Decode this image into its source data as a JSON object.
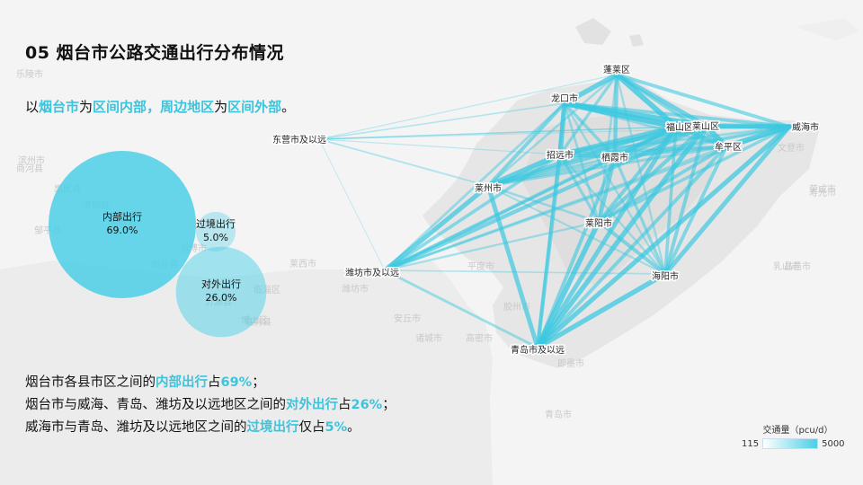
{
  "header": {
    "title": "05 烟台市公路交通出行分布情况"
  },
  "subtitle": {
    "parts": [
      "以",
      "烟台市",
      "为",
      "区间内部",
      "，",
      "周边地区",
      "为",
      "区间外部",
      "。"
    ]
  },
  "notes": [
    {
      "parts": [
        "烟台市各县市区之间的",
        "内部出行",
        "占",
        "69%",
        "；"
      ]
    },
    {
      "parts": [
        "烟台市与威海、青岛、潍坊及以远地区之间的",
        "对外出行",
        "占",
        "26%",
        "；"
      ]
    },
    {
      "parts": [
        "威海市与青岛、潍坊及以远地区之间的",
        "过境出行",
        "仅占",
        "5%",
        "。"
      ]
    }
  ],
  "legend": {
    "title": "交通量（pcu/d）",
    "min_label": "115",
    "max_label": "5000"
  },
  "colors": {
    "accent": "#3cc4dc",
    "bubble_fill": "#4ccfe6",
    "line": "#3cc8e0"
  },
  "map_labels": [
    "乐陵市",
    "滨州市",
    "商河县",
    "惠民县",
    "济阳县",
    "高青县",
    "桓台县",
    "邹平县",
    "淄博市",
    "临淄区",
    "博山区",
    "沂源县",
    "临朐县",
    "潍坊市",
    "安丘市",
    "诸城市",
    "高密市",
    "胶州市",
    "即墨市",
    "青岛市",
    "平度市",
    "莱西市",
    "昌邑市",
    "寿光市",
    "乳山市",
    "荣成市",
    "文登市",
    "威海市"
  ],
  "chart_data": {
    "type": "bubble",
    "bubbles": [
      {
        "label": "内部出行",
        "value_label": "69.0%",
        "value": 69.0
      },
      {
        "label": "过境出行",
        "value_label": "5.0%",
        "value": 5.0
      },
      {
        "label": "对外出行",
        "value_label": "26.0%",
        "value": 26.0
      }
    ],
    "flow_map": {
      "nodes": [
        "蓬莱区",
        "龙口市",
        "福山区",
        "莱山区",
        "威海市",
        "牟平区",
        "招远市",
        "栖霞市",
        "东营市及以远",
        "莱州市",
        "莱阳市",
        "潍坊市及以远",
        "海阳市",
        "青岛市及以远"
      ],
      "flows": [
        {
          "from": "龙口市",
          "to": "蓬莱区",
          "volume": 4200
        },
        {
          "from": "蓬莱区",
          "to": "福山区",
          "volume": 4600
        },
        {
          "from": "蓬莱区",
          "to": "莱山区",
          "volume": 3800
        },
        {
          "from": "蓬莱区",
          "to": "威海市",
          "volume": 2900
        },
        {
          "from": "蓬莱区",
          "to": "牟平区",
          "volume": 2600
        },
        {
          "from": "蓬莱区",
          "to": "招远市",
          "volume": 2400
        },
        {
          "from": "蓬莱区",
          "to": "栖霞市",
          "volume": 3300
        },
        {
          "from": "蓬莱区",
          "to": "莱州市",
          "volume": 1700
        },
        {
          "from": "蓬莱区",
          "to": "莱阳市",
          "volume": 1600
        },
        {
          "from": "蓬莱区",
          "to": "海阳市",
          "volume": 1500
        },
        {
          "from": "蓬莱区",
          "to": "东营市及以远",
          "volume": 500
        },
        {
          "from": "龙口市",
          "to": "福山区",
          "volume": 5000
        },
        {
          "from": "龙口市",
          "to": "莱山区",
          "volume": 4500
        },
        {
          "from": "龙口市",
          "to": "威海市",
          "volume": 2800
        },
        {
          "from": "龙口市",
          "to": "牟平区",
          "volume": 2000
        },
        {
          "from": "龙口市",
          "to": "招远市",
          "volume": 4200
        },
        {
          "from": "龙口市",
          "to": "栖霞市",
          "volume": 2500
        },
        {
          "from": "龙口市",
          "to": "莱州市",
          "volume": 3000
        },
        {
          "from": "龙口市",
          "to": "莱阳市",
          "volume": 1800
        },
        {
          "from": "龙口市",
          "to": "海阳市",
          "volume": 1500
        },
        {
          "from": "龙口市",
          "to": "东营市及以远",
          "volume": 900
        },
        {
          "from": "龙口市",
          "to": "潍坊市及以远",
          "volume": 1900
        },
        {
          "from": "龙口市",
          "to": "青岛市及以远",
          "volume": 2200
        },
        {
          "from": "福山区",
          "to": "莱山区",
          "volume": 5000
        },
        {
          "from": "福山区",
          "to": "威海市",
          "volume": 3500
        },
        {
          "from": "福山区",
          "to": "牟平区",
          "volume": 3600
        },
        {
          "from": "福山区",
          "to": "招远市",
          "volume": 3800
        },
        {
          "from": "福山区",
          "to": "栖霞市",
          "volume": 3500
        },
        {
          "from": "福山区",
          "to": "莱州市",
          "volume": 3400
        },
        {
          "from": "福山区",
          "to": "莱阳市",
          "volume": 3000
        },
        {
          "from": "福山区",
          "to": "海阳市",
          "volume": 2600
        },
        {
          "from": "福山区",
          "to": "东营市及以远",
          "volume": 700
        },
        {
          "from": "福山区",
          "to": "潍坊市及以远",
          "volume": 3000
        },
        {
          "from": "福山区",
          "to": "青岛市及以远",
          "volume": 3800
        },
        {
          "from": "莱山区",
          "to": "威海市",
          "volume": 4200
        },
        {
          "from": "莱山区",
          "to": "牟平区",
          "volume": 4300
        },
        {
          "from": "莱山区",
          "to": "招远市",
          "volume": 3600
        },
        {
          "from": "莱山区",
          "to": "栖霞市",
          "volume": 3400
        },
        {
          "from": "莱山区",
          "to": "莱州市",
          "volume": 3200
        },
        {
          "from": "莱山区",
          "to": "莱阳市",
          "volume": 3200
        },
        {
          "from": "莱山区",
          "to": "海阳市",
          "volume": 3000
        },
        {
          "from": "莱山区",
          "to": "东营市及以远",
          "volume": 600
        },
        {
          "from": "莱山区",
          "to": "潍坊市及以远",
          "volume": 3300
        },
        {
          "from": "莱山区",
          "to": "青岛市及以远",
          "volume": 4200
        },
        {
          "from": "威海市",
          "to": "牟平区",
          "volume": 4600
        },
        {
          "from": "威海市",
          "to": "招远市",
          "volume": 1900
        },
        {
          "from": "威海市",
          "to": "栖霞市",
          "volume": 2200
        },
        {
          "from": "威海市",
          "to": "莱州市",
          "volume": 1700
        },
        {
          "from": "威海市",
          "to": "莱阳市",
          "volume": 2500
        },
        {
          "from": "威海市",
          "to": "海阳市",
          "volume": 3800
        },
        {
          "from": "威海市",
          "to": "东营市及以远",
          "volume": 400
        },
        {
          "from": "威海市",
          "to": "潍坊市及以远",
          "volume": 2000
        },
        {
          "from": "威海市",
          "to": "青岛市及以远",
          "volume": 4000
        },
        {
          "from": "牟平区",
          "to": "招远市",
          "volume": 2300
        },
        {
          "from": "牟平区",
          "to": "栖霞市",
          "volume": 2600
        },
        {
          "from": "牟平区",
          "to": "莱州市",
          "volume": 2100
        },
        {
          "from": "牟平区",
          "to": "莱阳市",
          "volume": 2800
        },
        {
          "from": "牟平区",
          "to": "海阳市",
          "volume": 2900
        },
        {
          "from": "牟平区",
          "to": "潍坊市及以远",
          "volume": 1700
        },
        {
          "from": "牟平区",
          "to": "青岛市及以远",
          "volume": 2900
        },
        {
          "from": "招远市",
          "to": "栖霞市",
          "volume": 3000
        },
        {
          "from": "招远市",
          "to": "莱州市",
          "volume": 4400
        },
        {
          "from": "招远市",
          "to": "莱阳市",
          "volume": 2300
        },
        {
          "from": "招远市",
          "to": "海阳市",
          "volume": 1500
        },
        {
          "from": "招远市",
          "to": "东营市及以远",
          "volume": 500
        },
        {
          "from": "招远市",
          "to": "潍坊市及以远",
          "volume": 2700
        },
        {
          "from": "招远市",
          "to": "青岛市及以远",
          "volume": 3300
        },
        {
          "from": "栖霞市",
          "to": "莱州市",
          "volume": 2200
        },
        {
          "from": "栖霞市",
          "to": "莱阳市",
          "volume": 3200
        },
        {
          "from": "栖霞市",
          "to": "海阳市",
          "volume": 2300
        },
        {
          "from": "栖霞市",
          "to": "潍坊市及以远",
          "volume": 1600
        },
        {
          "from": "栖霞市",
          "to": "青岛市及以远",
          "volume": 3000
        },
        {
          "from": "莱州市",
          "to": "莱阳市",
          "volume": 1800
        },
        {
          "from": "莱州市",
          "to": "海阳市",
          "volume": 1300
        },
        {
          "from": "莱州市",
          "to": "东营市及以远",
          "volume": 1100
        },
        {
          "from": "莱州市",
          "to": "潍坊市及以远",
          "volume": 4000
        },
        {
          "from": "莱州市",
          "to": "青岛市及以远",
          "volume": 3800
        },
        {
          "from": "莱阳市",
          "to": "海阳市",
          "volume": 3000
        },
        {
          "from": "莱阳市",
          "to": "潍坊市及以远",
          "volume": 1500
        },
        {
          "from": "莱阳市",
          "to": "青岛市及以远",
          "volume": 4400
        },
        {
          "from": "海阳市",
          "to": "潍坊市及以远",
          "volume": 900
        },
        {
          "from": "海阳市",
          "to": "青岛市及以远",
          "volume": 4200
        },
        {
          "from": "潍坊市及以远",
          "to": "青岛市及以远",
          "volume": 2000
        },
        {
          "from": "东营市及以远",
          "to": "潍坊市及以远",
          "volume": 300
        }
      ]
    },
    "legend": {
      "title": "交通量（pcu/d）",
      "min": 115,
      "max": 5000
    }
  }
}
